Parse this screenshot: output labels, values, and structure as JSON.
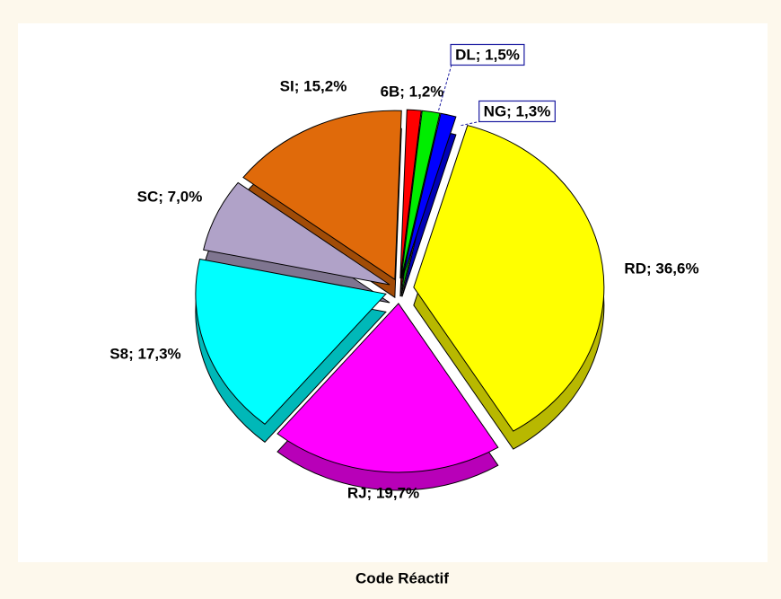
{
  "chart_data": {
    "type": "pie",
    "title": "Code Réactif",
    "values": [
      1.2,
      1.5,
      1.3,
      36.6,
      19.7,
      17.3,
      7.0,
      15.2
    ],
    "value_labels": [
      "6B; 1,2%",
      "DL; 1,5%",
      "NG; 1,3%",
      "RD; 36,6%",
      "RJ; 19,7%",
      "S8; 17,3%",
      "SC; 7,0%",
      "SI; 15,2%"
    ],
    "colors": [
      "#ff0000",
      "#00ee00",
      "#0000ff",
      "#ffff00",
      "#ff00ff",
      "#00ffff",
      "#b0a2c8",
      "#e06a0a"
    ]
  }
}
